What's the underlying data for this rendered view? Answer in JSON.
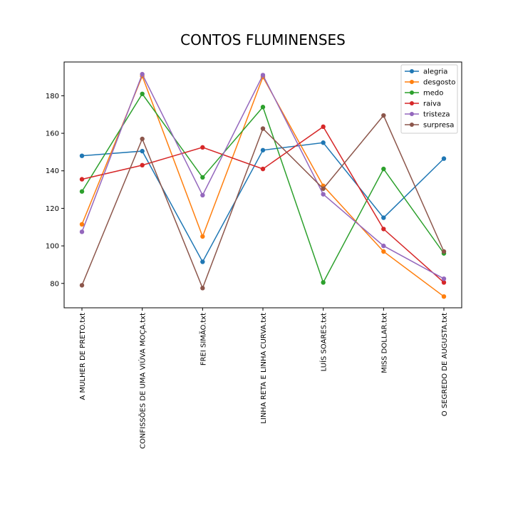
{
  "chart_data": {
    "type": "line",
    "title": "CONTOS FLUMINENSES",
    "xlabel": "",
    "ylabel": "",
    "categories": [
      "A MULHER DE PRETO.txt",
      "CONFISSÕES DE UMA VIÚVA MOÇA.txt",
      "FREI SIMÃO.txt",
      "LINHA RETA E LINHA CURVA.txt",
      "LUÍS SOARES.txt",
      "MISS DOLLAR.txt",
      "O SEGREDO DE AUGUSTA.txt"
    ],
    "ylim": [
      67,
      198
    ],
    "yticks": [
      80,
      100,
      120,
      140,
      160,
      180
    ],
    "grid": false,
    "legend_position": "top-right",
    "series": [
      {
        "name": "alegria",
        "color": "#1f77b4",
        "values": [
          148,
          150.5,
          91.5,
          151,
          155,
          115,
          146.5
        ]
      },
      {
        "name": "desgosto",
        "color": "#ff7f0e",
        "values": [
          111.5,
          190.5,
          105,
          190,
          132,
          97,
          73
        ]
      },
      {
        "name": "medo",
        "color": "#2ca02c",
        "values": [
          129,
          181,
          136.5,
          174,
          80.5,
          141,
          96
        ]
      },
      {
        "name": "raiva",
        "color": "#d62728",
        "values": [
          135.5,
          143,
          152.5,
          141,
          163.5,
          109,
          80.5
        ]
      },
      {
        "name": "tristeza",
        "color": "#9467bd",
        "values": [
          107.5,
          191.5,
          127,
          191,
          127.5,
          100,
          82.5
        ]
      },
      {
        "name": "surpresa",
        "color": "#8c564b",
        "values": [
          79,
          157,
          77.5,
          162.5,
          130.5,
          169.5,
          97
        ]
      }
    ]
  }
}
